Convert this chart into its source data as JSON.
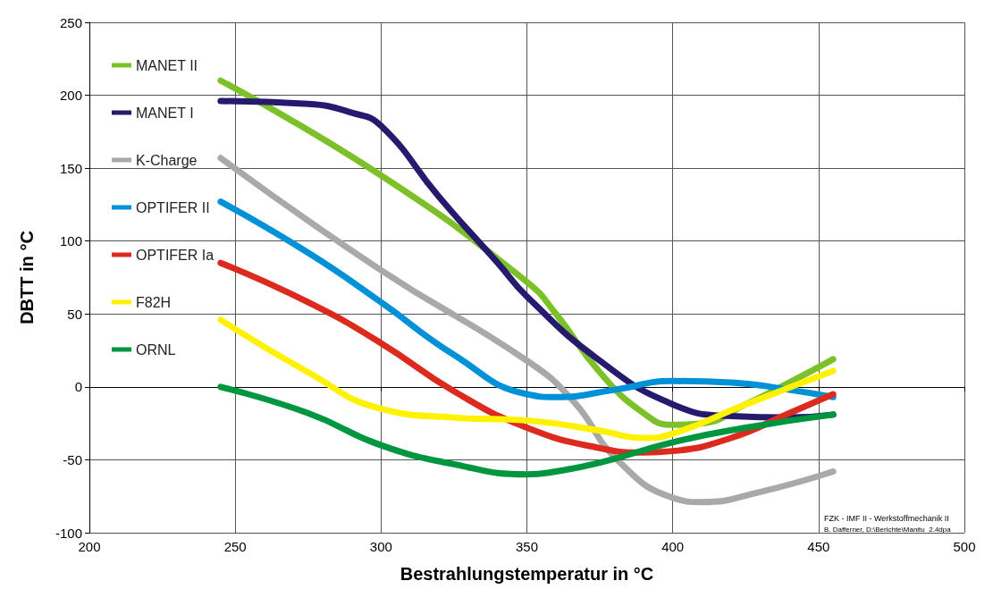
{
  "chart_data": {
    "type": "line",
    "xlabel": "Bestrahlungstemperatur in °C",
    "ylabel": "DBTT in °C",
    "xlim": [
      200,
      500
    ],
    "xticks": [
      200,
      250,
      300,
      350,
      400,
      450,
      500
    ],
    "ylim": [
      -100,
      250
    ],
    "yticks": [
      -100,
      -50,
      0,
      50,
      100,
      150,
      200,
      250
    ],
    "grid": true,
    "legend": "top left",
    "marker": "none",
    "line_style": "solid",
    "annotations": [
      "FZK - IMF II - Werkstoffmechanik II",
      "B. Dafferner, D:\\Berichte\\Manitu_2.4dpa"
    ],
    "series": [
      {
        "name": "MANET II",
        "color": "#7dc12a",
        "x": [
          245,
          300,
          350,
          360,
          375,
          390,
          400,
          410,
          425,
          440,
          455
        ],
        "values": [
          210,
          145,
          72,
          50,
          10,
          -18,
          -26,
          -25,
          -12,
          3,
          19
        ]
      },
      {
        "name": "MANET I",
        "color": "#261a6e",
        "x": [
          245,
          275,
          290,
          300,
          320,
          340,
          350,
          375,
          400,
          420,
          440,
          455
        ],
        "values": [
          196,
          194,
          188,
          179,
          130,
          85,
          62,
          18,
          -12,
          -20,
          -21,
          -19
        ]
      },
      {
        "name": "K-Charge",
        "color": "#a9a9a9",
        "x": [
          245,
          300,
          350,
          366,
          381,
          400,
          410,
          430,
          455
        ],
        "values": [
          157,
          80,
          18,
          -10,
          -50,
          -76,
          -79,
          -72,
          -58
        ]
      },
      {
        "name": "OPTIFER II",
        "color": "#0091d9",
        "x": [
          245,
          275,
          300,
          325,
          350,
          360,
          380,
          400,
          420,
          440,
          455
        ],
        "values": [
          127,
          92,
          58,
          22,
          -5,
          -7,
          -2,
          4,
          3,
          -2,
          -7
        ]
      },
      {
        "name": "OPTIFER Ia",
        "color": "#dc2a1e",
        "x": [
          245,
          275,
          300,
          325,
          350,
          375,
          390,
          400,
          420,
          440,
          455
        ],
        "values": [
          85,
          58,
          30,
          -3,
          -28,
          -42,
          -45,
          -44,
          -35,
          -18,
          -5
        ]
      },
      {
        "name": "F82H",
        "color": "#fff200",
        "x": [
          245,
          275,
          300,
          325,
          350,
          375,
          390,
          400,
          425,
          455
        ],
        "values": [
          46,
          10,
          -15,
          -21,
          -23,
          -30,
          -35,
          -32,
          -12,
          11
        ]
      },
      {
        "name": "ORNL",
        "color": "#009640",
        "x": [
          245,
          275,
          300,
          325,
          350,
          360,
          375,
          400,
          425,
          455
        ],
        "values": [
          0,
          -18,
          -40,
          -53,
          -60,
          -58,
          -52,
          -38,
          -28,
          -19
        ]
      }
    ]
  }
}
